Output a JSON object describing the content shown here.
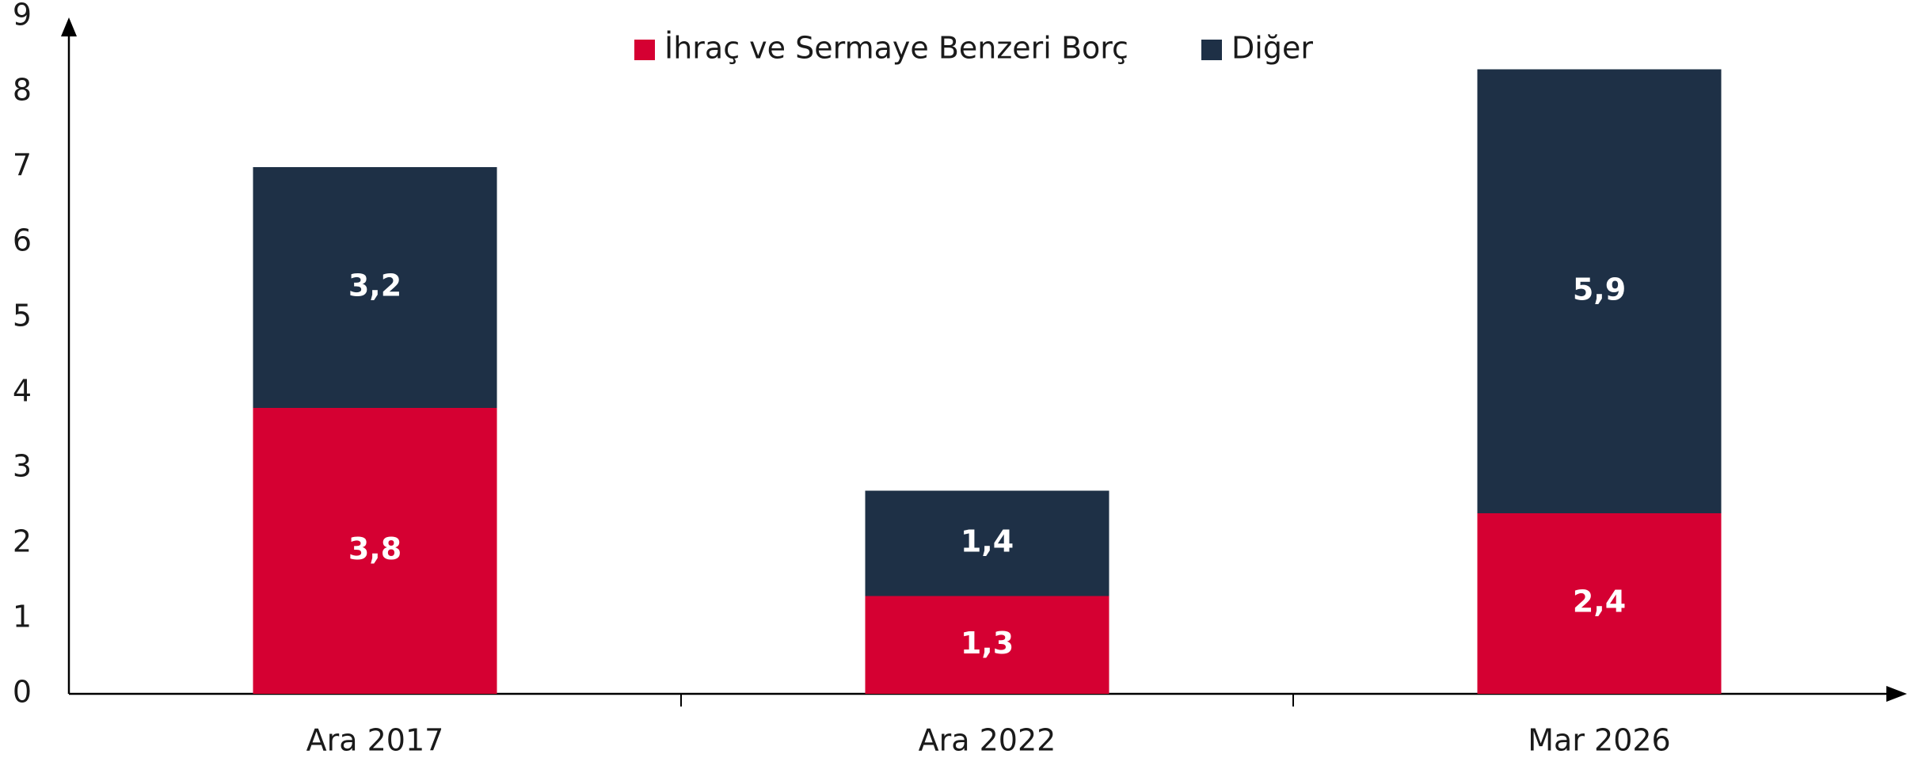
{
  "chart_data": {
    "type": "stacked_bar",
    "categories": [
      "Ara 2017",
      "Ara 2022",
      "Mar 2026"
    ],
    "series": [
      {
        "name": "İhraç ve Sermaye Benzeri Borç",
        "color": "#d50032",
        "values": [
          3.8,
          1.3,
          2.4
        ],
        "value_labels": [
          "3,8",
          "1,3",
          "2,4"
        ]
      },
      {
        "name": "Diğer",
        "color": "#1e3046",
        "values": [
          3.2,
          1.4,
          5.9
        ],
        "value_labels": [
          "3,2",
          "1,4",
          "5,9"
        ]
      }
    ],
    "ylim": [
      0,
      9
    ],
    "yticks": [
      0,
      1,
      2,
      3,
      4,
      5,
      6,
      7,
      8,
      9
    ],
    "grid": false,
    "legend": "top"
  }
}
